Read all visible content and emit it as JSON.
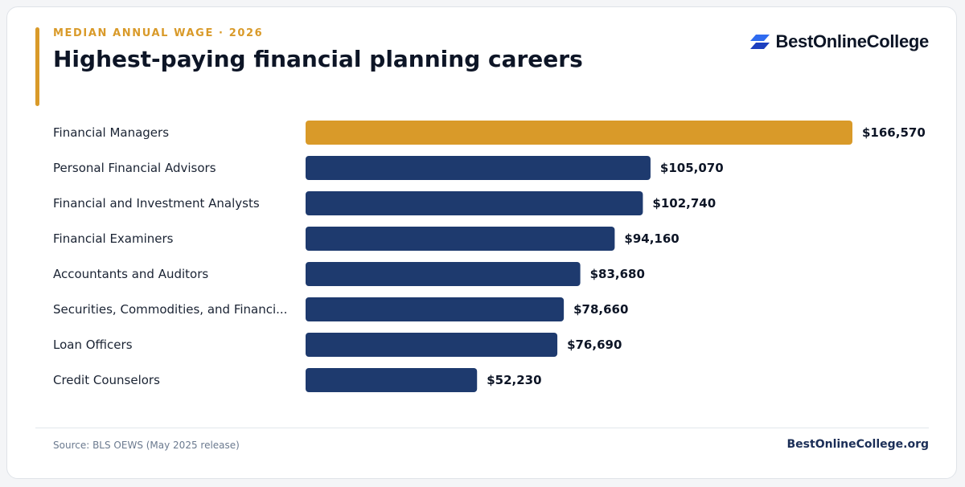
{
  "header": {
    "eyebrow": "MEDIAN ANNUAL WAGE · 2026",
    "title": "Highest-paying financial planning careers"
  },
  "brand": {
    "name": "BestOnlineCollege",
    "logo_icon": "stacked-parallelogram-logo-icon",
    "colors": {
      "logo_top": "#2f6bf0",
      "logo_bottom": "#1d3fbf"
    }
  },
  "colors": {
    "highlight": "#d99a29",
    "bar": "#1e3a6e",
    "label": "#1a2333",
    "value": "#0d1526"
  },
  "chart_data": {
    "type": "bar",
    "orientation": "horizontal",
    "categories": [
      "Financial Managers",
      "Personal Financial Advisors",
      "Financial and Investment Analysts",
      "Financial Examiners",
      "Accountants and Auditors",
      "Securities, Commodities, and Financi...",
      "Loan Officers",
      "Credit Counselors"
    ],
    "values": [
      166570,
      105070,
      102740,
      94160,
      83680,
      78660,
      76690,
      52230
    ],
    "value_labels": [
      "$166,570",
      "$105,070",
      "$102,740",
      "$94,160",
      "$83,680",
      "$78,660",
      "$76,690",
      "$52,230"
    ],
    "highlighted_index": 0,
    "xlim": [
      0,
      166570
    ],
    "grid": false,
    "legend": "none"
  },
  "footer": {
    "source": "Source: BLS OEWS (May 2025 release)",
    "site": "BestOnlineCollege.org"
  }
}
